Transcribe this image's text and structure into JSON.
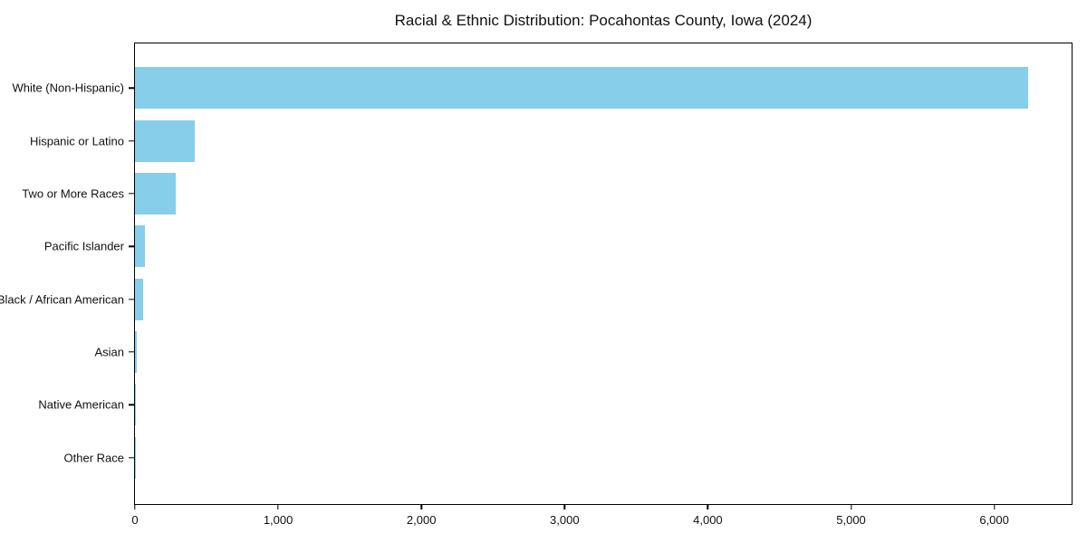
{
  "title": "Racial & Ethnic Distribution: Pocahontas County, Iowa (2024)",
  "colors": {
    "bar": "#87CEEB",
    "axis": "#000000",
    "background": "#FFFFFF",
    "text": "#111111"
  },
  "chart_data": {
    "type": "bar",
    "orientation": "horizontal",
    "title": "Racial & Ethnic Distribution: Pocahontas County, Iowa (2024)",
    "xlabel": "",
    "ylabel": "",
    "categories": [
      "White (Non-Hispanic)",
      "Hispanic or Latino",
      "Two or More Races",
      "Pacific Islander",
      "Black / African American",
      "Asian",
      "Native American",
      "Other Race"
    ],
    "values": [
      6235,
      415,
      285,
      68,
      56,
      10,
      4,
      2
    ],
    "xlim": [
      0,
      6540
    ],
    "x_ticks": [
      0,
      1000,
      2000,
      3000,
      4000,
      5000,
      6000
    ],
    "x_tick_labels": [
      "0",
      "1,000",
      "2,000",
      "3,000",
      "4,000",
      "5,000",
      "6,000"
    ],
    "bar_color": "#87CEEB",
    "grid": false,
    "legend": null
  }
}
